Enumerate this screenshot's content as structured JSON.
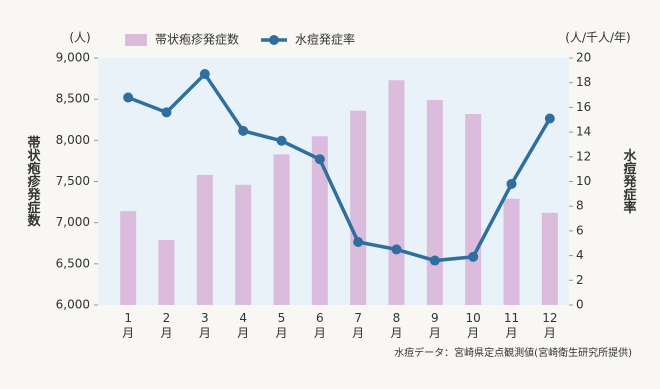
{
  "chart_data": {
    "type": "bar_line",
    "categories": [
      "1月",
      "2月",
      "3月",
      "4月",
      "5月",
      "6月",
      "7月",
      "8月",
      "9月",
      "10月",
      "11月",
      "12月"
    ],
    "series": [
      {
        "name": "帯状疱疹発症数",
        "type": "bar",
        "color": "#dcbcdc",
        "values": [
          7140,
          6790,
          7580,
          7460,
          7830,
          8050,
          8360,
          8730,
          8490,
          8320,
          7290,
          7120
        ]
      },
      {
        "name": "水痘発症率",
        "type": "line",
        "axis": "y2",
        "color": "#2f6f9f",
        "values": [
          16.8,
          15.6,
          18.7,
          14.1,
          13.3,
          11.8,
          5.1,
          4.5,
          3.6,
          3.9,
          9.8,
          15.1
        ]
      }
    ],
    "ylim": [
      6000,
      9000
    ],
    "yticks": [
      {
        "value": 6000,
        "label": "6,000"
      },
      {
        "value": 6500,
        "label": "6,500"
      },
      {
        "value": 7000,
        "label": "7,000"
      },
      {
        "value": 7500,
        "label": "7,500"
      },
      {
        "value": 8000,
        "label": "8,000"
      },
      {
        "value": 8500,
        "label": "8,500"
      },
      {
        "value": 9000,
        "label": "9,000"
      }
    ],
    "y2lim": [
      0,
      20
    ],
    "y2ticks": [
      0,
      2,
      4,
      6,
      8,
      10,
      12,
      14,
      16,
      18,
      20
    ],
    "y_unit": "(人)",
    "y2_unit": "(人/千人/年)",
    "ylabel": "帯状疱疹発症数",
    "y2label": "水痘発症率",
    "source": "水痘データ：宮崎県定点観測値(宮崎衛生研究所提供)"
  }
}
